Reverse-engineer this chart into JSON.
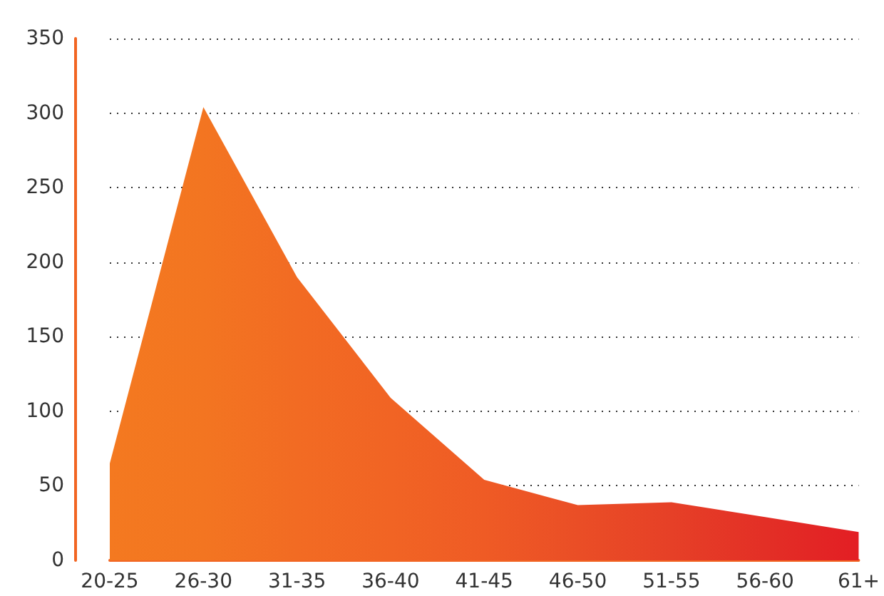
{
  "chart_data": {
    "type": "area",
    "categories": [
      "20-25",
      "26-30",
      "31-35",
      "36-40",
      "41-45",
      "46-50",
      "51-55",
      "56-60",
      "61+"
    ],
    "series": [
      {
        "values": [
          65,
          304,
          190,
          109,
          54,
          37,
          39,
          29,
          19
        ],
        "colors": [
          "#f47920",
          "#f37521",
          "#f26b23",
          "#f16424",
          "#ef5b25",
          "#ea4e26",
          "#e64027",
          "#e32f26",
          "#e31e24"
        ]
      }
    ],
    "ylim": [
      0,
      350
    ],
    "yticks": [
      0,
      50,
      100,
      150,
      200,
      250,
      300,
      350
    ],
    "grid": "y",
    "marker": "none"
  }
}
